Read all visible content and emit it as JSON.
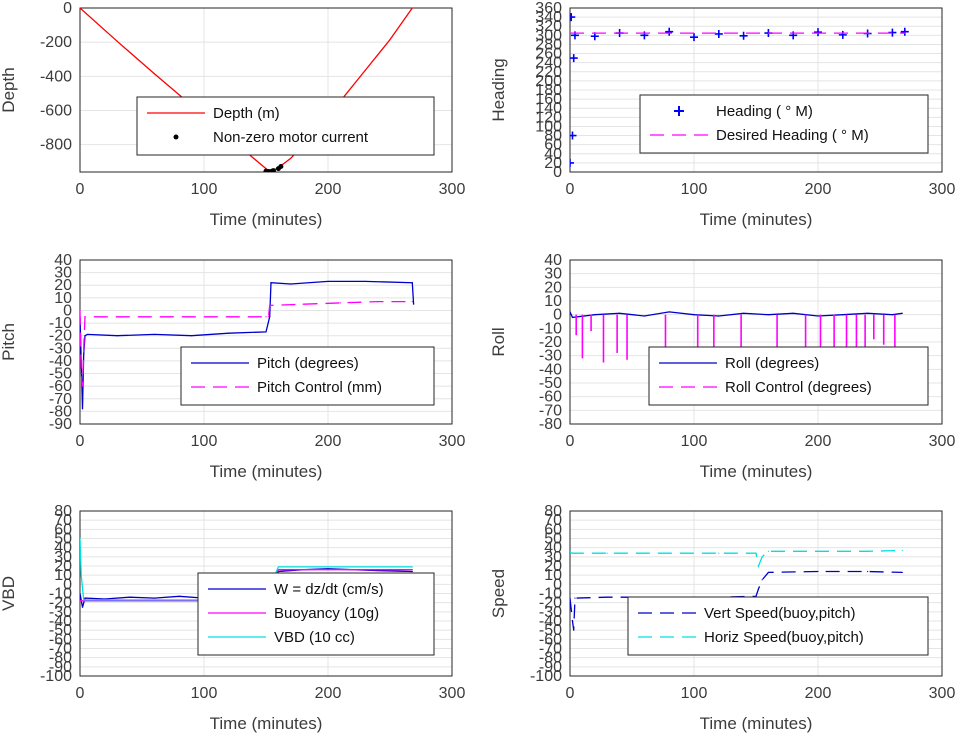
{
  "chart_data": [
    {
      "id": "depth",
      "type": "line",
      "xlabel": "Time (minutes)",
      "ylabel": "Depth",
      "xlim": [
        0,
        300
      ],
      "ylim": [
        -960,
        0
      ],
      "xticks": [
        0,
        100,
        200,
        300
      ],
      "yticks": [
        0,
        -200,
        -400,
        -600,
        -800
      ],
      "grid": true,
      "legend_position": "center",
      "series": [
        {
          "name": "Depth (m)",
          "style": "solid",
          "color": "#ff0000",
          "x": [
            0,
            30,
            60,
            90,
            120,
            140,
            150,
            152,
            156,
            160,
            170,
            190,
            210,
            230,
            250,
            268
          ],
          "y": [
            0,
            -195,
            -385,
            -570,
            -760,
            -880,
            -940,
            -955,
            -950,
            -935,
            -880,
            -720,
            -545,
            -365,
            -185,
            0
          ]
        },
        {
          "name": "Non-zero motor current",
          "style": "dots",
          "color": "#000000",
          "x": [
            150,
            152,
            154,
            155,
            156,
            160,
            162
          ],
          "y": [
            -955,
            -957,
            -958,
            -955,
            -952,
            -940,
            -928
          ]
        }
      ]
    },
    {
      "id": "heading",
      "type": "line",
      "xlabel": "Time (minutes)",
      "ylabel": "Heading",
      "xlim": [
        0,
        300
      ],
      "ylim": [
        0,
        360
      ],
      "xticks": [
        0,
        100,
        200,
        300
      ],
      "yticks": [
        0,
        20,
        40,
        60,
        80,
        100,
        120,
        140,
        160,
        180,
        200,
        220,
        240,
        260,
        280,
        300,
        320,
        340,
        360
      ],
      "grid": true,
      "legend_position": "center-right",
      "series": [
        {
          "name": "Heading ( ° M)",
          "style": "plus",
          "color": "#0000ff",
          "x": [
            0,
            1,
            2,
            3,
            4,
            20,
            40,
            60,
            80,
            100,
            120,
            140,
            160,
            180,
            200,
            220,
            240,
            260,
            270
          ],
          "y": [
            20,
            340,
            80,
            250,
            300,
            298,
            305,
            300,
            308,
            296,
            303,
            299,
            305,
            300,
            307,
            301,
            304,
            306,
            308
          ]
        },
        {
          "name": "Desired Heading ( ° M)",
          "style": "dashed",
          "color": "#ff00ff",
          "x": [
            0,
            270
          ],
          "y": [
            305,
            305
          ]
        }
      ]
    },
    {
      "id": "pitch",
      "type": "line",
      "xlabel": "Time (minutes)",
      "ylabel": "Pitch",
      "xlim": [
        0,
        300
      ],
      "ylim": [
        -90,
        40
      ],
      "xticks": [
        0,
        100,
        200,
        300
      ],
      "yticks": [
        40,
        30,
        20,
        10,
        0,
        -10,
        -20,
        -30,
        -40,
        -50,
        -60,
        -70,
        -80,
        -90
      ],
      "grid": true,
      "legend_position": "bottom-right",
      "series": [
        {
          "name": "Pitch (degrees)",
          "style": "solid",
          "color": "#0000cc",
          "x": [
            0,
            1,
            2,
            3,
            4,
            6,
            30,
            60,
            90,
            120,
            150,
            153,
            154,
            170,
            200,
            230,
            268,
            269
          ],
          "y": [
            -5,
            -40,
            -78,
            -35,
            -20,
            -19,
            -20,
            -19,
            -20,
            -18,
            -17,
            -5,
            22,
            21,
            23,
            23,
            22,
            5
          ]
        },
        {
          "name": "Pitch Control (mm)",
          "style": "dashed",
          "color": "#ff00ff",
          "x": [
            0,
            1,
            2,
            3,
            4,
            150,
            152,
            153,
            180,
            210,
            240,
            268
          ],
          "y": [
            0,
            -50,
            -60,
            -30,
            -5,
            -5,
            -5,
            4,
            5,
            6,
            7,
            7
          ]
        }
      ]
    },
    {
      "id": "roll",
      "type": "line",
      "xlabel": "Time (minutes)",
      "ylabel": "Roll",
      "xlim": [
        0,
        300
      ],
      "ylim": [
        -80,
        40
      ],
      "xticks": [
        0,
        100,
        200,
        300
      ],
      "yticks": [
        40,
        30,
        20,
        10,
        0,
        -10,
        -20,
        -30,
        -40,
        -50,
        -60,
        -70,
        -80
      ],
      "grid": true,
      "legend_position": "bottom-right",
      "series": [
        {
          "name": "Roll (degrees)",
          "style": "solid",
          "color": "#0000cc",
          "x": [
            0,
            2,
            20,
            40,
            60,
            80,
            100,
            120,
            140,
            160,
            180,
            200,
            220,
            240,
            260,
            268
          ],
          "y": [
            2,
            -2,
            0,
            1,
            -1,
            2,
            0,
            -1,
            1,
            0,
            1,
            -1,
            0,
            1,
            0,
            1
          ]
        },
        {
          "name": "Roll Control (degrees)",
          "style": "spikes",
          "color": "#ff00ff",
          "x": [
            5,
            10,
            17,
            27,
            38,
            46,
            77,
            103,
            116,
            138,
            167,
            190,
            202,
            213,
            223,
            231,
            238,
            245,
            253,
            262
          ],
          "y": [
            -15,
            -32,
            -12,
            -35,
            -28,
            -33,
            -33,
            -33,
            -32,
            -32,
            -33,
            -33,
            -28,
            -30,
            -31,
            -31,
            -27,
            -18,
            -22,
            -31
          ]
        }
      ]
    },
    {
      "id": "vbd",
      "type": "line",
      "xlabel": "Time (minutes)",
      "ylabel": "VBD",
      "xlim": [
        0,
        300
      ],
      "ylim": [
        -100,
        80
      ],
      "xticks": [
        0,
        100,
        200,
        300
      ],
      "yticks": [
        80,
        70,
        60,
        50,
        40,
        30,
        20,
        10,
        0,
        -10,
        -20,
        -30,
        -40,
        -50,
        -60,
        -70,
        -80,
        -90,
        -100
      ],
      "grid": true,
      "legend_position": "bottom-right",
      "series": [
        {
          "name": "W = dz/dt (cm/s)",
          "style": "solid",
          "color": "#0000cc",
          "x": [
            0,
            2,
            4,
            20,
            40,
            60,
            80,
            100,
            120,
            140,
            150,
            155,
            160,
            180,
            200,
            220,
            240,
            268
          ],
          "y": [
            -10,
            -25,
            -15,
            -16,
            -14,
            -15,
            -13,
            -15,
            -14,
            -13,
            -12,
            0,
            14,
            16,
            17,
            16,
            15,
            14
          ]
        },
        {
          "name": "Buoyancy (10g)",
          "style": "solid",
          "color": "#ff00ff",
          "x": [
            0,
            3,
            150,
            152,
            160,
            268
          ],
          "y": [
            -18,
            -18,
            -18,
            -5,
            16,
            16
          ]
        },
        {
          "name": "VBD (10 cc)",
          "style": "solid",
          "color": "#00e0e0",
          "x": [
            0,
            1,
            3,
            150,
            152,
            160,
            268
          ],
          "y": [
            50,
            10,
            -17,
            -17,
            -5,
            19,
            19
          ]
        }
      ]
    },
    {
      "id": "speed",
      "type": "line",
      "xlabel": "Time (minutes)",
      "ylabel": "Speed",
      "xlim": [
        0,
        300
      ],
      "ylim": [
        -100,
        80
      ],
      "xticks": [
        0,
        100,
        200,
        300
      ],
      "yticks": [
        80,
        70,
        60,
        50,
        40,
        30,
        20,
        10,
        0,
        -10,
        -20,
        -30,
        -40,
        -50,
        -60,
        -70,
        -80,
        -90,
        -100
      ],
      "grid": true,
      "legend_position": "bottom-right",
      "series": [
        {
          "name": "Vert Speed(buoy,pitch)",
          "style": "dashed",
          "color": "#0000cc",
          "x": [
            0,
            2,
            3,
            4,
            30,
            60,
            90,
            120,
            150,
            152,
            155,
            160,
            200,
            240,
            268
          ],
          "y": [
            -15,
            -40,
            -50,
            -15,
            -14,
            -14,
            -14,
            -14,
            -13,
            -5,
            5,
            13,
            14,
            14,
            13
          ]
        },
        {
          "name": "Horiz Speed(buoy,pitch)",
          "style": "dashed",
          "color": "#00e0e0",
          "x": [
            0,
            2,
            30,
            60,
            90,
            120,
            150,
            152,
            155,
            160,
            200,
            240,
            268
          ],
          "y": [
            35,
            34,
            34,
            34,
            34,
            34,
            34,
            20,
            30,
            36,
            36,
            36,
            37
          ]
        }
      ]
    }
  ]
}
